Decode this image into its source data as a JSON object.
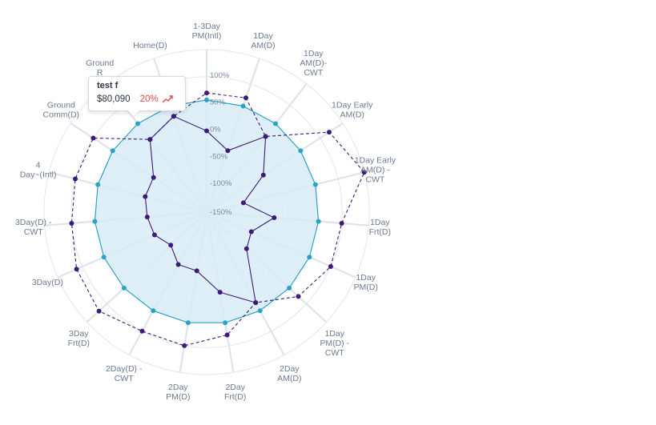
{
  "chart_data": {
    "type": "radar",
    "title": "",
    "axes": [
      "1-3Day\nPM(Intl)",
      "1Day\nAM(D)",
      "1Day\nAM(D)-\nCWT",
      "1Day Early\nAM(D)",
      "1Day Early\nAM(D) -\nCWT",
      "1Day\nFrt(D)",
      "1Day\nPM(D)",
      "1Day\nPM(D) -\nCWT",
      "2Day\nAM(D)",
      "2Day\nFrt(D)",
      "2Day\nPM(D)",
      "2Day(D) -\nCWT",
      "3Day\nFrt(D)",
      "3Day(D)",
      "3Day(D) -\nCWT",
      "4\nDay~(Intl)",
      "Ground\nComm(D)",
      "Ground\nR",
      "Home(D)"
    ],
    "radial_ticks": [
      "-150%",
      "-100%",
      "-50%",
      "0%",
      "50%",
      "100%"
    ],
    "radial_range": [
      -150,
      150
    ],
    "series": [
      {
        "style": "area",
        "color": "#2aa1c9",
        "fill": "#d9ecf6",
        "values": [
          57,
          57,
          57,
          57,
          57,
          57,
          57,
          57,
          57,
          57,
          57,
          57,
          57,
          57,
          57,
          57,
          57,
          57,
          57
        ]
      },
      {
        "style": "solid-line",
        "color": "#3e1b78",
        "values": [
          0,
          -30,
          27,
          -25,
          -80,
          -25,
          -60,
          -50,
          40,
          0,
          -40,
          -40,
          -60,
          -45,
          -40,
          -33,
          -33,
          20,
          37
        ]
      },
      {
        "style": "dashed-line",
        "color": "#3e1b78",
        "values": [
          70,
          73,
          27,
          120,
          150,
          100,
          100,
          80,
          40,
          80,
          100,
          100,
          120,
          112,
          100,
          100,
          100,
          20,
          37
        ]
      }
    ],
    "tooltip": {
      "title": "test f",
      "value": "$80,090",
      "change": "20%",
      "trend_icon": "trend-up-icon",
      "change_color": "#e5484d"
    }
  }
}
